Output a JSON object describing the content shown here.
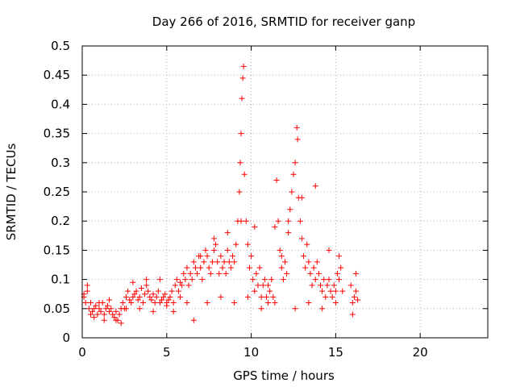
{
  "chart_data": {
    "type": "scatter",
    "title": "Day 266 of 2016, SRMTID for receiver ganp",
    "xlabel": "GPS time / hours",
    "ylabel": "SRMTID / TECUs",
    "xlim": [
      0,
      24
    ],
    "ylim": [
      0,
      0.5
    ],
    "grid": true,
    "marker": "plus",
    "color": "#ff0000",
    "x_ticks": [
      "0",
      "5",
      "10",
      "15",
      "20"
    ],
    "y_ticks": [
      "0",
      "0.05",
      "0.1",
      "0.15",
      "0.2",
      "0.25",
      "0.3",
      "0.35",
      "0.4",
      "0.45",
      "0.5"
    ],
    "x_tick_values": [
      0,
      5,
      10,
      15,
      20
    ],
    "y_tick_values": [
      0,
      0.05,
      0.1,
      0.15,
      0.2,
      0.25,
      0.3,
      0.35,
      0.4,
      0.45,
      0.5
    ],
    "series": [
      {
        "name": "SRMTID",
        "x": [
          0.1,
          0.2,
          0.3,
          0.4,
          0.5,
          0.6,
          0.7,
          0.8,
          0.9,
          1.0,
          1.1,
          1.2,
          1.3,
          1.4,
          1.5,
          1.6,
          1.7,
          1.8,
          1.9,
          2.0,
          2.1,
          2.2,
          2.3,
          2.4,
          2.5,
          2.6,
          2.7,
          2.8,
          2.9,
          3.0,
          3.1,
          3.2,
          3.3,
          3.4,
          3.5,
          3.6,
          3.7,
          3.8,
          3.9,
          4.0,
          4.1,
          4.2,
          4.3,
          4.4,
          4.5,
          4.6,
          4.7,
          4.8,
          4.9,
          5.0,
          5.1,
          5.2,
          5.3,
          5.4,
          5.5,
          5.6,
          5.7,
          5.8,
          5.9,
          6.0,
          6.1,
          6.2,
          6.3,
          6.4,
          6.5,
          6.6,
          6.7,
          6.8,
          6.9,
          7.0,
          7.1,
          7.2,
          7.3,
          7.4,
          7.5,
          7.6,
          7.7,
          7.8,
          7.9,
          8.0,
          8.1,
          8.2,
          8.3,
          8.4,
          8.5,
          8.6,
          8.7,
          8.8,
          8.9,
          9.0,
          9.1,
          9.2,
          9.3,
          9.35,
          9.4,
          9.45,
          9.5,
          9.55,
          9.6,
          9.7,
          9.8,
          9.9,
          10.0,
          10.1,
          10.2,
          10.3,
          10.4,
          10.5,
          10.6,
          10.7,
          10.8,
          10.9,
          11.0,
          11.1,
          11.2,
          11.3,
          11.4,
          11.5,
          11.6,
          11.7,
          11.8,
          11.9,
          12.0,
          12.1,
          12.2,
          12.3,
          12.4,
          12.5,
          12.6,
          12.7,
          12.75,
          12.8,
          12.9,
          13.0,
          13.1,
          13.2,
          13.3,
          13.4,
          13.5,
          13.6,
          13.7,
          13.8,
          13.9,
          14.0,
          14.1,
          14.2,
          14.3,
          14.4,
          14.5,
          14.6,
          14.7,
          14.8,
          14.9,
          15.0,
          15.1,
          15.2,
          15.3,
          15.4,
          15.9,
          16.0,
          16.1,
          16.2,
          16.3,
          0.1,
          0.3,
          0.5,
          0.7,
          1.0,
          1.3,
          1.6,
          2.0,
          2.3,
          2.6,
          3.0,
          3.4,
          3.8,
          4.2,
          4.6,
          5.0,
          5.4,
          5.8,
          6.2,
          6.6,
          7.0,
          7.4,
          7.8,
          8.2,
          8.6,
          9.0,
          9.4,
          9.8,
          10.2,
          10.6,
          11.0,
          11.4,
          11.8,
          12.2,
          12.6,
          13.0,
          13.4,
          13.8,
          14.2,
          14.6,
          15.0,
          15.2,
          16.0,
          16.2
        ],
        "y": [
          0.07,
          0.06,
          0.08,
          0.05,
          0.06,
          0.045,
          0.05,
          0.055,
          0.04,
          0.05,
          0.045,
          0.06,
          0.04,
          0.05,
          0.055,
          0.045,
          0.05,
          0.04,
          0.035,
          0.045,
          0.03,
          0.04,
          0.05,
          0.06,
          0.05,
          0.07,
          0.08,
          0.065,
          0.06,
          0.07,
          0.075,
          0.08,
          0.065,
          0.07,
          0.085,
          0.06,
          0.075,
          0.09,
          0.08,
          0.07,
          0.065,
          0.075,
          0.06,
          0.07,
          0.08,
          0.06,
          0.065,
          0.07,
          0.075,
          0.06,
          0.065,
          0.07,
          0.08,
          0.06,
          0.09,
          0.1,
          0.08,
          0.07,
          0.09,
          0.11,
          0.1,
          0.12,
          0.09,
          0.11,
          0.1,
          0.13,
          0.12,
          0.11,
          0.14,
          0.12,
          0.1,
          0.13,
          0.15,
          0.14,
          0.12,
          0.11,
          0.13,
          0.15,
          0.16,
          0.13,
          0.11,
          0.14,
          0.12,
          0.13,
          0.11,
          0.15,
          0.13,
          0.12,
          0.14,
          0.13,
          0.16,
          0.2,
          0.25,
          0.3,
          0.35,
          0.41,
          0.445,
          0.465,
          0.28,
          0.2,
          0.16,
          0.12,
          0.14,
          0.1,
          0.08,
          0.11,
          0.09,
          0.12,
          0.07,
          0.09,
          0.1,
          0.07,
          0.09,
          0.08,
          0.1,
          0.07,
          0.19,
          0.27,
          0.2,
          0.15,
          0.12,
          0.1,
          0.13,
          0.11,
          0.18,
          0.22,
          0.25,
          0.28,
          0.3,
          0.36,
          0.34,
          0.24,
          0.2,
          0.17,
          0.14,
          0.12,
          0.16,
          0.13,
          0.11,
          0.09,
          0.12,
          0.1,
          0.13,
          0.11,
          0.09,
          0.08,
          0.1,
          0.07,
          0.09,
          0.1,
          0.08,
          0.07,
          0.09,
          0.08,
          0.11,
          0.1,
          0.12,
          0.08,
          0.09,
          0.06,
          0.07,
          0.08,
          0.065,
          0.075,
          0.09,
          0.04,
          0.035,
          0.06,
          0.03,
          0.065,
          0.03,
          0.025,
          0.05,
          0.095,
          0.05,
          0.1,
          0.045,
          0.1,
          0.055,
          0.045,
          0.095,
          0.06,
          0.03,
          0.14,
          0.06,
          0.17,
          0.07,
          0.18,
          0.06,
          0.2,
          0.07,
          0.19,
          0.05,
          0.06,
          0.06,
          0.14,
          0.2,
          0.05,
          0.24,
          0.06,
          0.26,
          0.05,
          0.15,
          0.06,
          0.14,
          0.04,
          0.11
        ]
      }
    ]
  }
}
